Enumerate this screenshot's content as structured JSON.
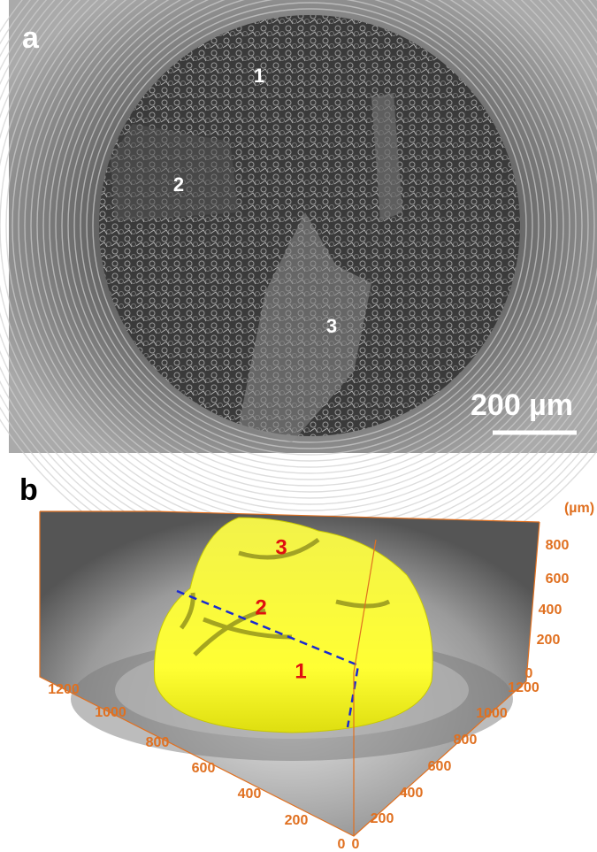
{
  "panel_a": {
    "label": "a",
    "regions": [
      "1",
      "2",
      "3"
    ],
    "scale_bar": "200 µm"
  },
  "panel_b": {
    "label": "b",
    "unit": "(µm)",
    "regions": [
      "3",
      "2",
      "1"
    ],
    "z_ticks": [
      "0",
      "200",
      "400",
      "600",
      "800"
    ],
    "x_ticks": [
      "1200",
      "1000",
      "800",
      "600",
      "400",
      "200",
      "0"
    ],
    "y_ticks": [
      "0",
      "200",
      "400",
      "600",
      "800",
      "1000",
      "1200"
    ]
  }
}
